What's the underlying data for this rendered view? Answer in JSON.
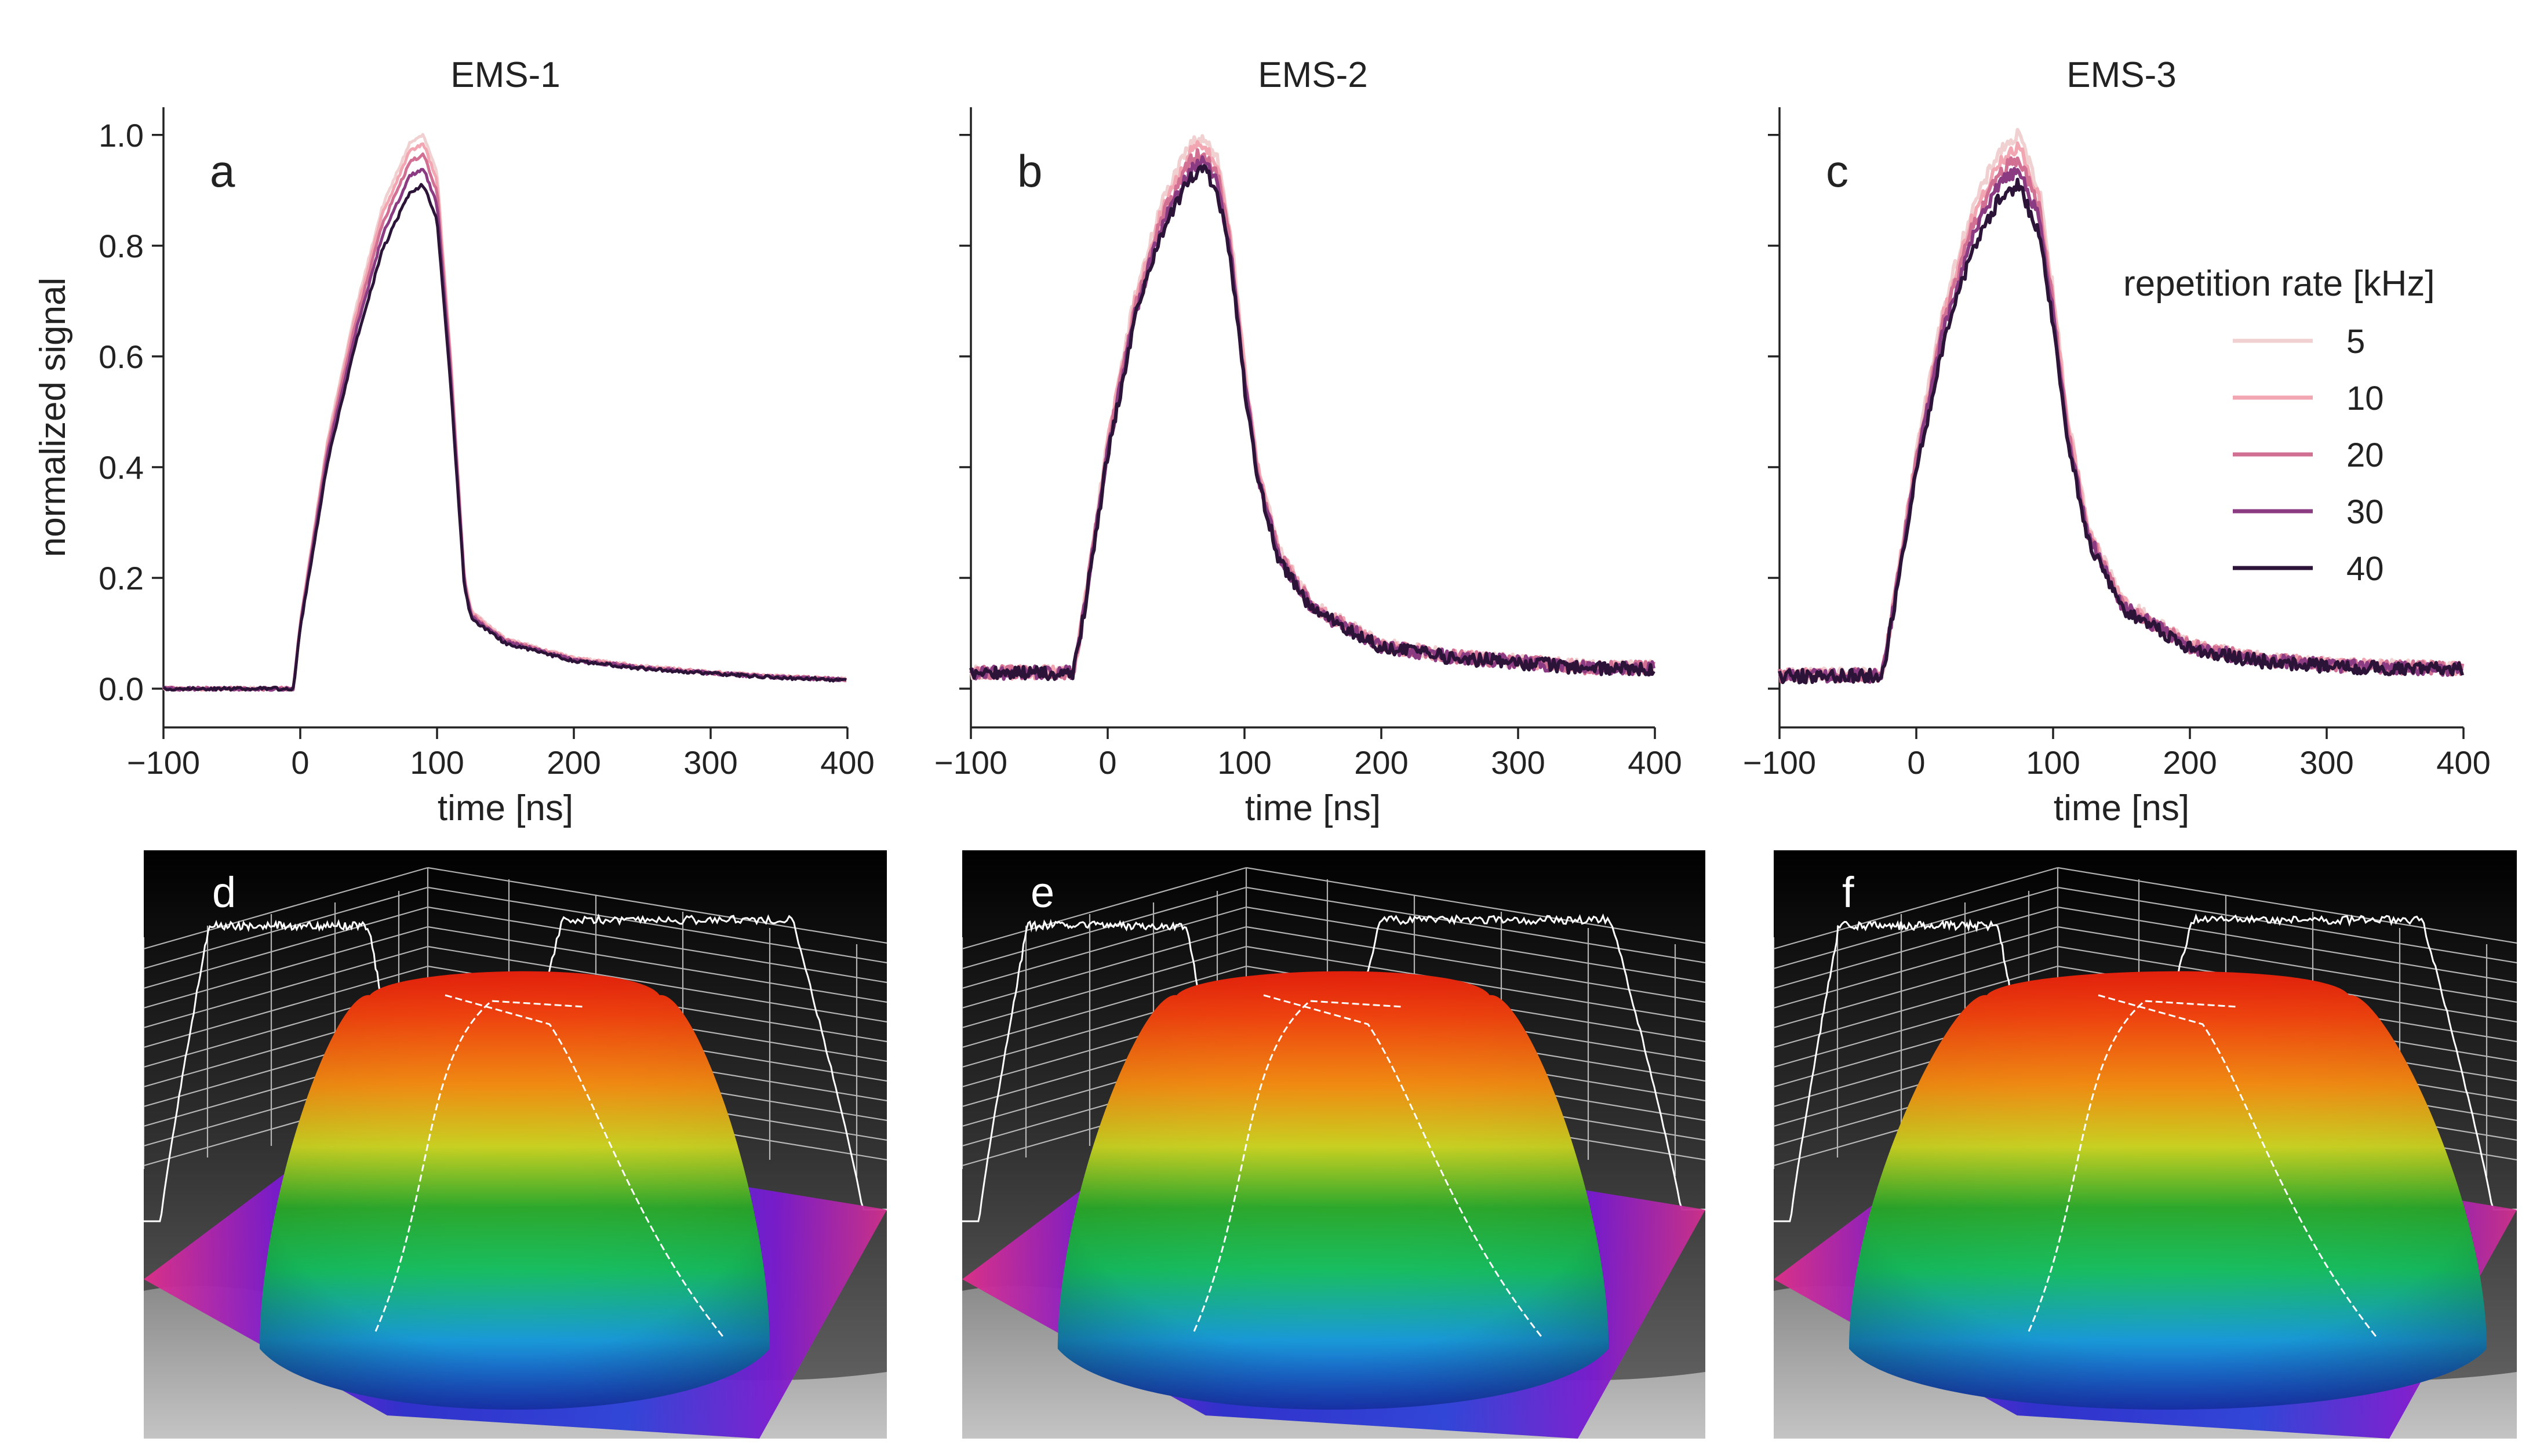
{
  "figure": {
    "ylabel": "normalized signal",
    "xlabel": "time [ns]"
  },
  "legend": {
    "title": "repetition rate [kHz]",
    "entries": [
      "5",
      "10",
      "20",
      "30",
      "40"
    ],
    "colors": [
      "#f0d0d0",
      "#f2a6b2",
      "#d27093",
      "#8b3b82",
      "#2b1438"
    ]
  },
  "chart_data": [
    {
      "type": "line",
      "title": "EMS-1",
      "panel_label": "a",
      "xlabel": "time [ns]",
      "ylabel": "normalized signal",
      "xlim": [
        -100,
        400
      ],
      "ylim": [
        -0.07,
        1.05
      ],
      "xticks": [
        -100,
        0,
        100,
        200,
        300,
        400
      ],
      "yticks": [
        0.0,
        0.2,
        0.4,
        0.6,
        0.8,
        1.0
      ],
      "xtick_labels": [
        "−100",
        "0",
        "100",
        "200",
        "300",
        "400"
      ],
      "ytick_labels": [
        "0.0",
        "0.2",
        "0.4",
        "0.6",
        "0.8",
        "1.0"
      ],
      "x": [
        -100,
        -5,
        0,
        20,
        40,
        60,
        80,
        90,
        100,
        110,
        120,
        125,
        150,
        200,
        250,
        300,
        350,
        400
      ],
      "base": [
        0.0,
        0.0,
        0.12,
        0.45,
        0.68,
        0.87,
        0.985,
        1.0,
        0.93,
        0.6,
        0.2,
        0.14,
        0.09,
        0.055,
        0.04,
        0.03,
        0.022,
        0.017
      ],
      "noise": 0.003,
      "series": [
        {
          "name": "5",
          "scale": 1.0
        },
        {
          "name": "10",
          "scale": 0.985
        },
        {
          "name": "20",
          "scale": 0.965
        },
        {
          "name": "30",
          "scale": 0.94
        },
        {
          "name": "40",
          "scale": 0.91
        }
      ]
    },
    {
      "type": "line",
      "title": "EMS-2",
      "panel_label": "b",
      "xlabel": "time [ns]",
      "ylabel": "normalized signal",
      "xlim": [
        -100,
        400
      ],
      "ylim": [
        -0.07,
        1.05
      ],
      "xticks": [
        -100,
        0,
        100,
        200,
        300,
        400
      ],
      "yticks": [
        0.0,
        0.2,
        0.4,
        0.6,
        0.8,
        1.0
      ],
      "xtick_labels": [
        "−100",
        "0",
        "100",
        "200",
        "300",
        "400"
      ],
      "ytick_labels": [
        "",
        "",
        "",
        "",
        "",
        ""
      ],
      "x": [
        -100,
        -25,
        -20,
        0,
        20,
        40,
        60,
        70,
        80,
        90,
        100,
        110,
        125,
        150,
        200,
        250,
        300,
        350,
        400
      ],
      "base": [
        0.03,
        0.03,
        0.1,
        0.45,
        0.71,
        0.88,
        0.98,
        1.0,
        0.96,
        0.82,
        0.58,
        0.4,
        0.25,
        0.15,
        0.08,
        0.06,
        0.05,
        0.04,
        0.038
      ],
      "noise": 0.012,
      "series": [
        {
          "name": "5",
          "scale": 1.0
        },
        {
          "name": "10",
          "scale": 0.985
        },
        {
          "name": "20",
          "scale": 0.97
        },
        {
          "name": "30",
          "scale": 0.955
        },
        {
          "name": "40",
          "scale": 0.94
        }
      ]
    },
    {
      "type": "line",
      "title": "EMS-3",
      "panel_label": "c",
      "xlabel": "time [ns]",
      "ylabel": "normalized signal",
      "xlim": [
        -100,
        400
      ],
      "ylim": [
        -0.07,
        1.05
      ],
      "xticks": [
        -100,
        0,
        100,
        200,
        300,
        400
      ],
      "yticks": [
        0.0,
        0.2,
        0.4,
        0.6,
        0.8,
        1.0
      ],
      "xtick_labels": [
        "−100",
        "0",
        "100",
        "200",
        "300",
        "400"
      ],
      "ytick_labels": [
        "",
        "",
        "",
        "",
        "",
        ""
      ],
      "x": [
        -100,
        -25,
        -20,
        0,
        20,
        40,
        60,
        75,
        90,
        100,
        110,
        125,
        150,
        200,
        250,
        300,
        350,
        400
      ],
      "base": [
        0.025,
        0.025,
        0.1,
        0.43,
        0.69,
        0.86,
        0.97,
        1.0,
        0.9,
        0.72,
        0.5,
        0.3,
        0.16,
        0.08,
        0.055,
        0.045,
        0.04,
        0.038
      ],
      "noise": 0.012,
      "series": [
        {
          "name": "5",
          "scale": 1.0
        },
        {
          "name": "10",
          "scale": 0.98
        },
        {
          "name": "20",
          "scale": 0.96
        },
        {
          "name": "30",
          "scale": 0.94
        },
        {
          "name": "40",
          "scale": 0.91
        }
      ]
    }
  ],
  "surfaces": [
    {
      "panel_label": "d"
    },
    {
      "panel_label": "e"
    },
    {
      "panel_label": "f"
    }
  ]
}
